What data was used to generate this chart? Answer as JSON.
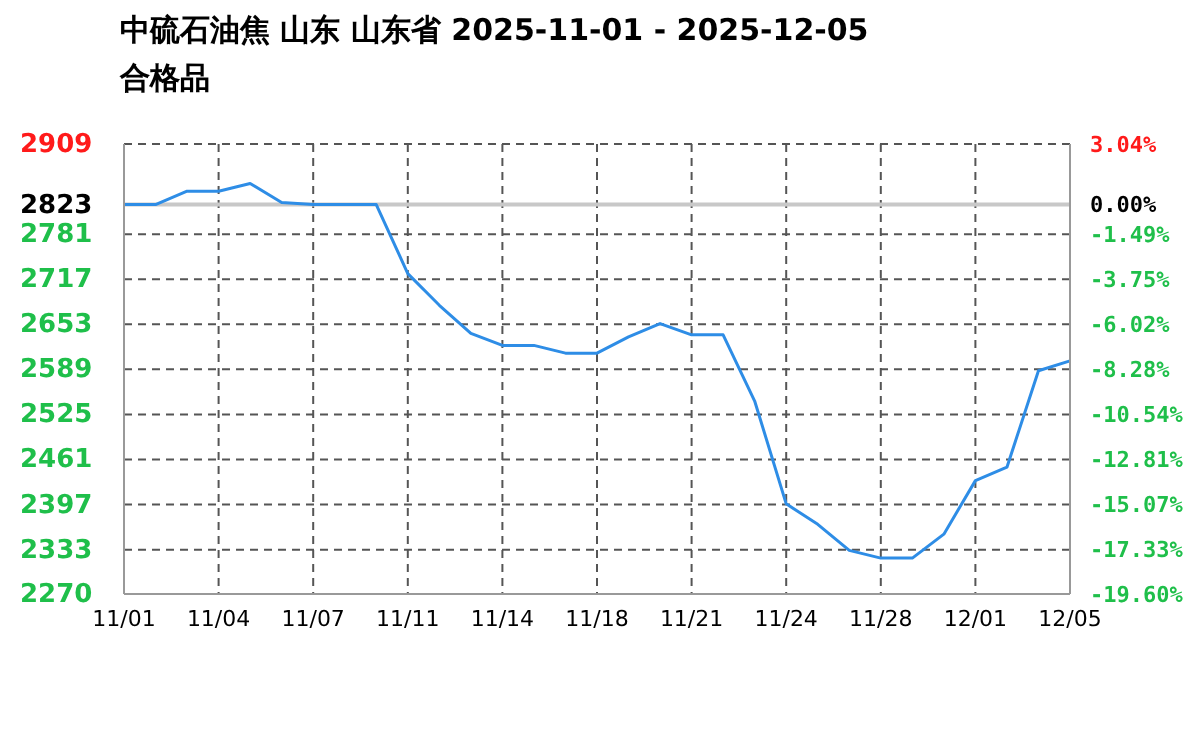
{
  "chart_data": {
    "type": "line",
    "title": "中硫石油焦 山东 山东省 2025-11-01 - 2025-12-05",
    "subtitle": "合格品",
    "categories": [
      "11/01",
      null,
      null,
      "11/04",
      null,
      null,
      "11/07",
      null,
      null,
      "11/11",
      null,
      null,
      "11/14",
      null,
      null,
      "11/18",
      null,
      null,
      "11/21",
      null,
      null,
      "11/24",
      null,
      null,
      "11/28",
      null,
      null,
      "12/01",
      null,
      null,
      "12/05"
    ],
    "series": [
      {
        "color": "#2e8de6",
        "values": [
          2823,
          2823,
          2842,
          2842,
          2853,
          2826,
          2823,
          2823,
          2823,
          2725,
          2680,
          2640,
          2623,
          2623,
          2612,
          2612,
          2635,
          2654,
          2638,
          2638,
          2544,
          2398,
          2369,
          2332,
          2321,
          2321,
          2355,
          2431,
          2450,
          2587,
          2601
        ]
      }
    ],
    "ylim": [
      2270,
      2909
    ],
    "yticks": [
      2270,
      2333,
      2397,
      2461,
      2525,
      2589,
      2653,
      2717,
      2781,
      2823,
      2909
    ],
    "y2lim": [
      -19.6,
      3.04
    ],
    "y2ticks": [
      {
        "value": -19.6,
        "label": "-19.60%"
      },
      {
        "value": -17.33,
        "label": "-17.33%"
      },
      {
        "value": -15.07,
        "label": "-15.07%"
      },
      {
        "value": -12.81,
        "label": "-12.81%"
      },
      {
        "value": -10.54,
        "label": "-10.54%"
      },
      {
        "value": -8.28,
        "label": "-8.28%"
      },
      {
        "value": -6.02,
        "label": "-6.02%"
      },
      {
        "value": -3.75,
        "label": "-3.75%"
      },
      {
        "value": -1.49,
        "label": "-1.49%"
      },
      {
        "value": 0,
        "label": "0.00%"
      },
      {
        "value": 3.04,
        "label": "3.04%"
      }
    ],
    "ref_lines": [
      {
        "axis": "y",
        "value": 2823,
        "color": "#c8c8c8"
      }
    ],
    "grid": true,
    "marker": "none",
    "line_style": "solid"
  }
}
